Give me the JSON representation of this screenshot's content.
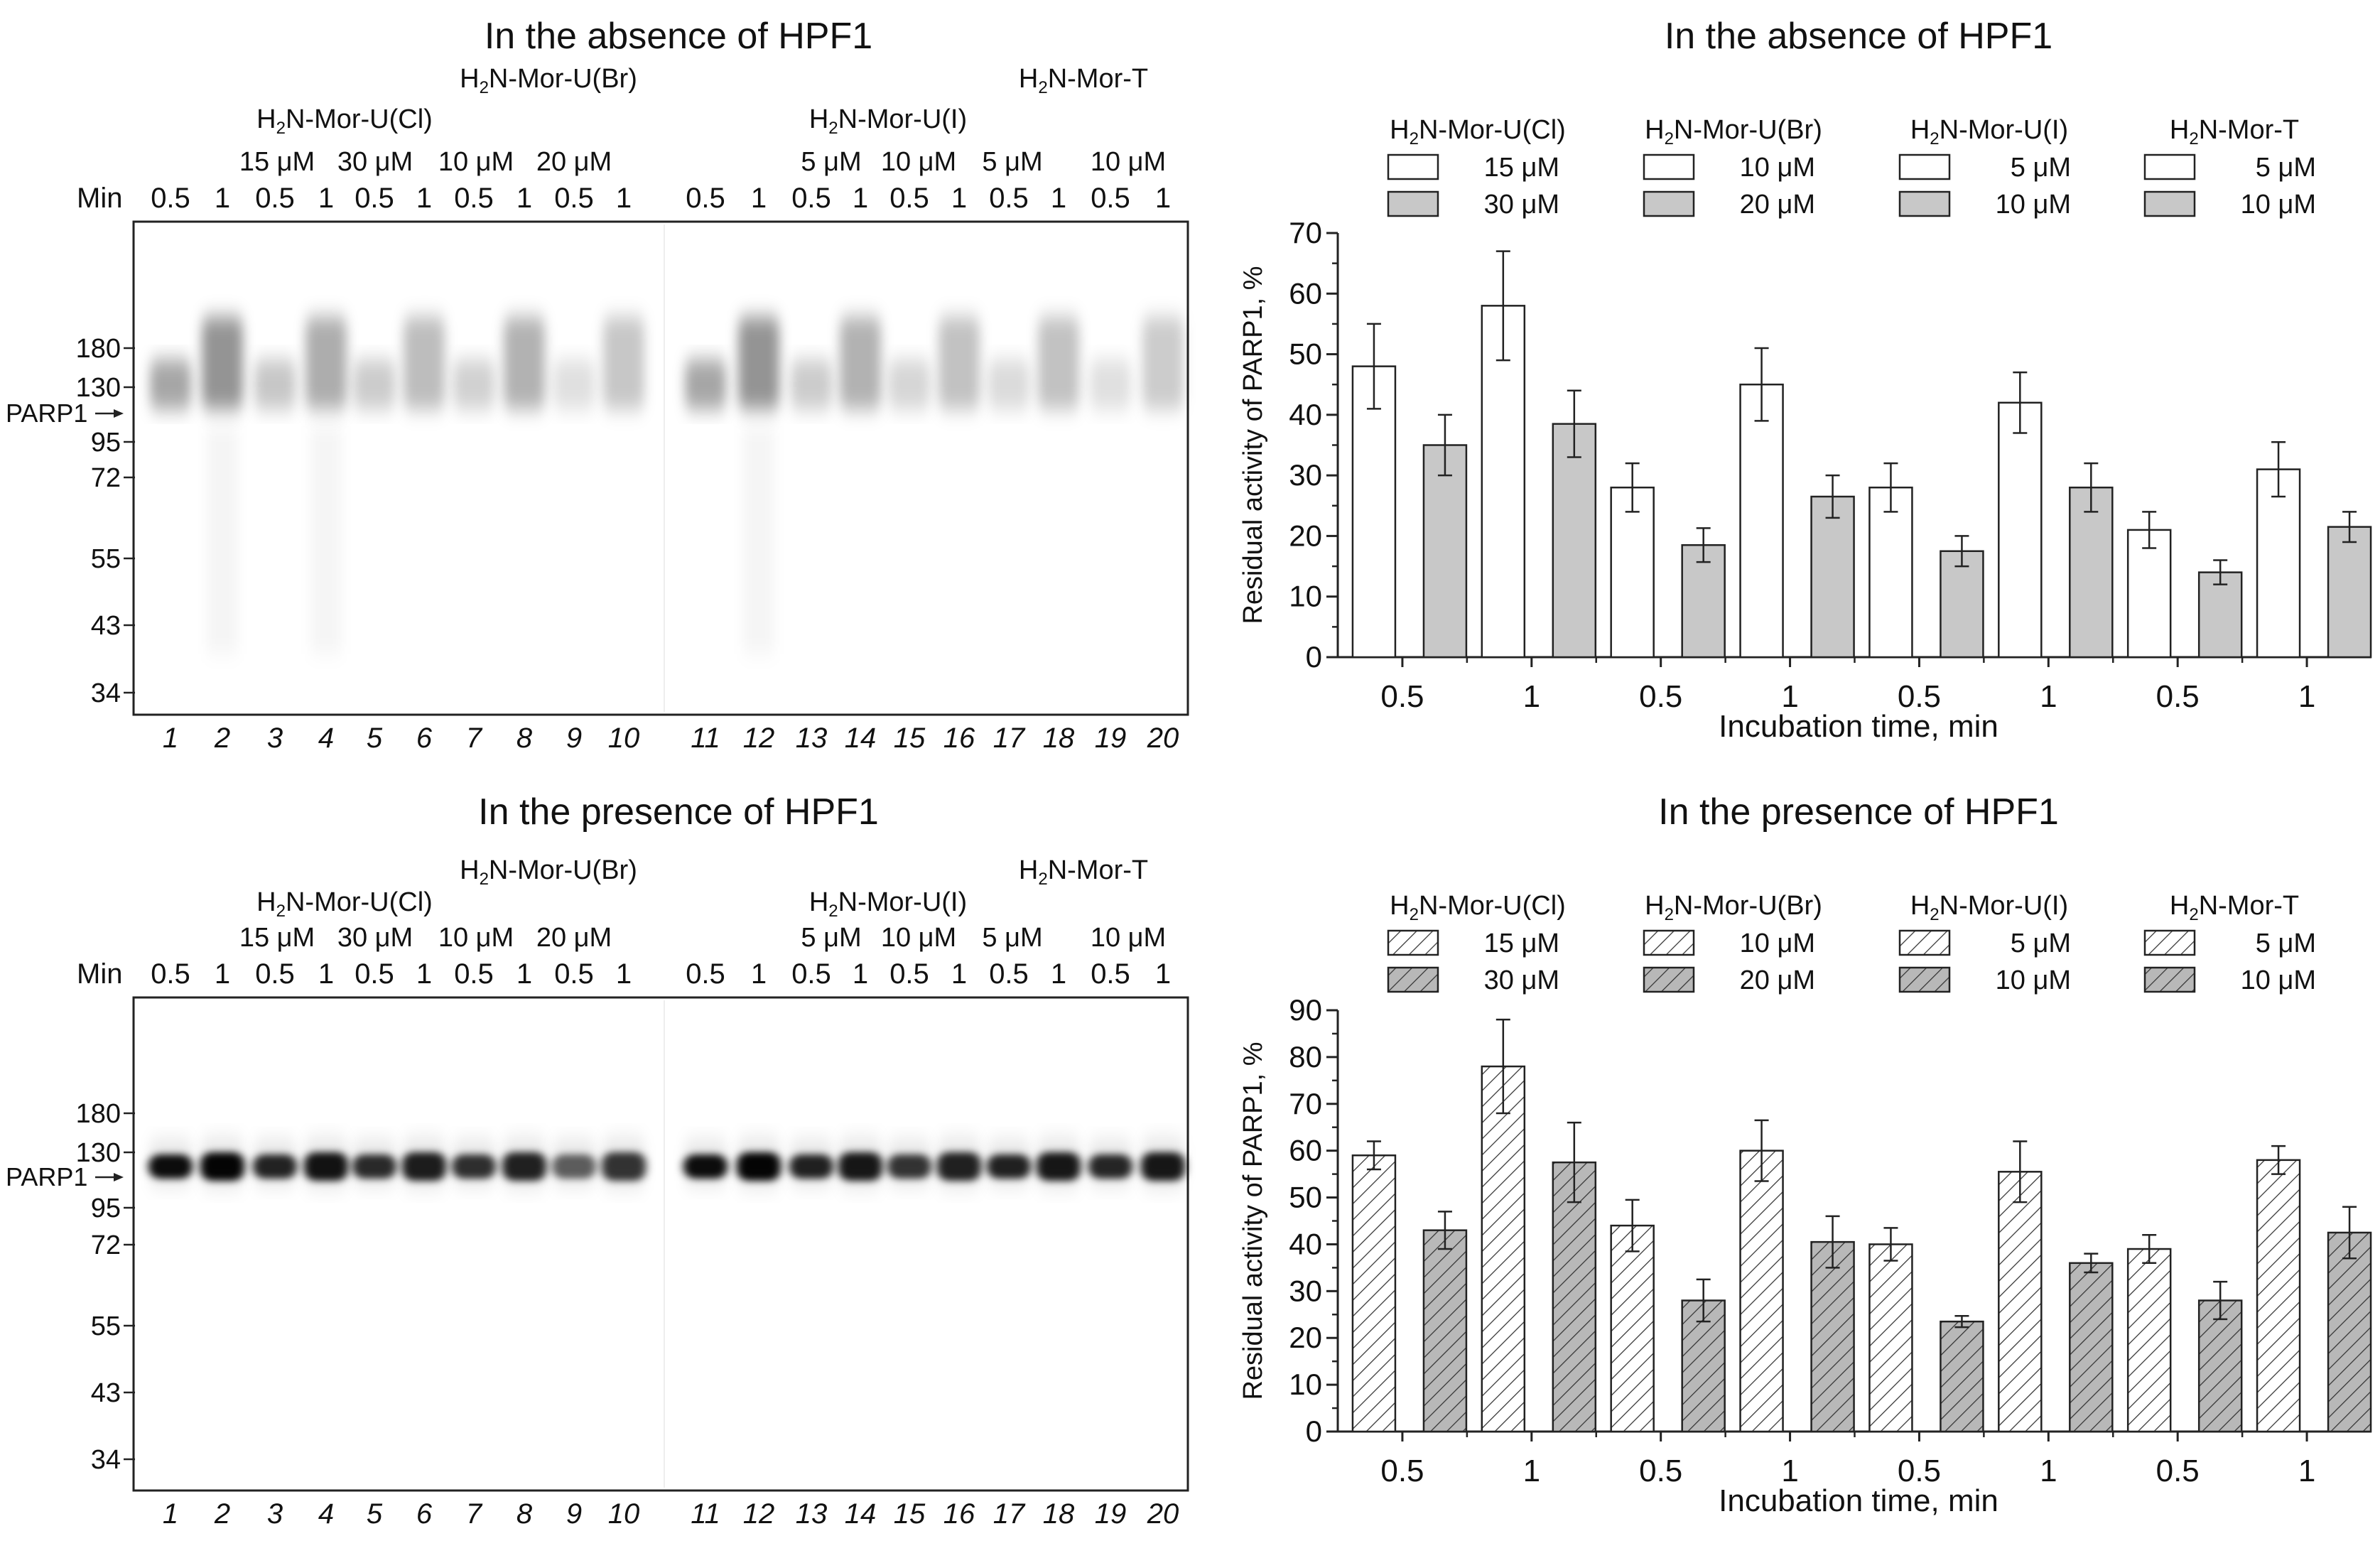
{
  "gels": [
    {
      "title": "In the absence of HPF1",
      "compound_labels": [
        "H2N-Mor-U(Cl)",
        "H2N-Mor-U(Br)",
        "H2N-Mor-U(I)",
        "H2N-Mor-T"
      ],
      "conc_labels": [
        "15 μM",
        "30 μM",
        "10 μM",
        "20 μM",
        "5 μM",
        "10 μM",
        "5 μM",
        "10 μM"
      ],
      "min_label": "Min",
      "time_labels": [
        "0.5",
        "1",
        "0.5",
        "1",
        "0.5",
        "1",
        "0.5",
        "1",
        "0.5",
        "1",
        "0.5",
        "1",
        "0.5",
        "1",
        "0.5",
        "1",
        "0.5",
        "1",
        "0.5",
        "1"
      ],
      "lane_numbers": [
        "1",
        "2",
        "3",
        "4",
        "5",
        "6",
        "7",
        "8",
        "9",
        "10",
        "11",
        "12",
        "13",
        "14",
        "15",
        "16",
        "17",
        "18",
        "19",
        "20"
      ],
      "markers": [
        "180",
        "130",
        "95",
        "72",
        "55",
        "43",
        "34"
      ],
      "parp1_label": "PARP1",
      "band_intensity": [
        0.35,
        0.42,
        0.22,
        0.32,
        0.2,
        0.26,
        0.18,
        0.3,
        0.12,
        0.22,
        0.35,
        0.42,
        0.2,
        0.3,
        0.16,
        0.24,
        0.14,
        0.24,
        0.12,
        0.2
      ]
    },
    {
      "title": "In the presence of HPF1",
      "compound_labels": [
        "H2N-Mor-U(Cl)",
        "H2N-Mor-U(Br)",
        "H2N-Mor-U(I)",
        "H2N-Mor-T"
      ],
      "conc_labels": [
        "15 μM",
        "30 μM",
        "10 μM",
        "20 μM",
        "5 μM",
        "10 μM",
        "5 μM",
        "10 μM"
      ],
      "min_label": "Min",
      "time_labels": [
        "0.5",
        "1",
        "0.5",
        "1",
        "0.5",
        "1",
        "0.5",
        "1",
        "0.5",
        "1",
        "0.5",
        "1",
        "0.5",
        "1",
        "0.5",
        "1",
        "0.5",
        "1",
        "0.5",
        "1"
      ],
      "lane_numbers": [
        "1",
        "2",
        "3",
        "4",
        "5",
        "6",
        "7",
        "8",
        "9",
        "10",
        "11",
        "12",
        "13",
        "14",
        "15",
        "16",
        "17",
        "18",
        "19",
        "20"
      ],
      "markers": [
        "180",
        "130",
        "95",
        "72",
        "55",
        "43",
        "34"
      ],
      "parp1_label": "PARP1",
      "band_intensity": [
        0.95,
        0.98,
        0.85,
        0.92,
        0.82,
        0.88,
        0.8,
        0.86,
        0.6,
        0.78,
        0.95,
        0.98,
        0.86,
        0.9,
        0.78,
        0.86,
        0.86,
        0.9,
        0.84,
        0.9
      ]
    }
  ],
  "chart_data": [
    {
      "type": "bar",
      "title": "In the absence of HPF1",
      "xlabel": "Incubation time, min",
      "ylabel": "Residual activity of PARP1, %",
      "ylim": [
        0,
        70
      ],
      "yticks": [
        0,
        10,
        20,
        30,
        40,
        50,
        60,
        70
      ],
      "categories": [
        "0.5",
        "1",
        "0.5",
        "1",
        "0.5",
        "1",
        "0.5",
        "1"
      ],
      "groups": [
        "H2N-Mor-U(Cl)",
        "H2N-Mor-U(Br)",
        "H2N-Mor-U(I)",
        "H2N-Mor-T"
      ],
      "legend": [
        {
          "compound": "H2N-Mor-U(Cl)",
          "low": "15 μM",
          "high": "30 μM"
        },
        {
          "compound": "H2N-Mor-U(Br)",
          "low": "10 μM",
          "high": "20 μM"
        },
        {
          "compound": "H2N-Mor-U(I)",
          "low": "5 μM",
          "high": "10 μM"
        },
        {
          "compound": "H2N-Mor-T",
          "low": "5 μM",
          "high": "10 μM"
        }
      ],
      "series": [
        {
          "name": "lower concentration",
          "style": "white",
          "values": [
            48,
            58,
            28,
            45,
            28,
            42,
            21,
            31
          ],
          "errors": [
            7,
            9,
            4,
            6,
            4,
            5,
            3,
            4.5
          ]
        },
        {
          "name": "higher concentration",
          "style": "gray",
          "values": [
            35,
            38.5,
            18.5,
            26.5,
            17.5,
            28,
            14,
            21.5
          ],
          "errors": [
            5,
            5.5,
            2.8,
            3.5,
            2.5,
            4,
            2,
            2.5
          ]
        }
      ],
      "colors": {
        "light": "#ffffff",
        "dark": "#c8c8c8"
      }
    },
    {
      "type": "bar",
      "title": "In the presence of HPF1",
      "xlabel": "Incubation time, min",
      "ylabel": "Residual activity of PARP1, %",
      "ylim": [
        0,
        90
      ],
      "yticks": [
        0,
        10,
        20,
        30,
        40,
        50,
        60,
        70,
        80,
        90
      ],
      "categories": [
        "0.5",
        "1",
        "0.5",
        "1",
        "0.5",
        "1",
        "0.5",
        "1"
      ],
      "groups": [
        "H2N-Mor-U(Cl)",
        "H2N-Mor-U(Br)",
        "H2N-Mor-U(I)",
        "H2N-Mor-T"
      ],
      "legend": [
        {
          "compound": "H2N-Mor-U(Cl)",
          "low": "15 μM",
          "high": "30 μM"
        },
        {
          "compound": "H2N-Mor-U(Br)",
          "low": "10 μM",
          "high": "20 μM"
        },
        {
          "compound": "H2N-Mor-U(I)",
          "low": "5 μM",
          "high": "10 μM"
        },
        {
          "compound": "H2N-Mor-T",
          "low": "5 μM",
          "high": "10 μM"
        }
      ],
      "series": [
        {
          "name": "lower concentration",
          "style": "hatched-light",
          "values": [
            59,
            78,
            44,
            60,
            40,
            55.5,
            39,
            58
          ],
          "errors": [
            3,
            10,
            5.5,
            6.5,
            3.5,
            6.5,
            3,
            3
          ]
        },
        {
          "name": "higher concentration",
          "style": "hatched-dark",
          "values": [
            43,
            57.5,
            28,
            40.5,
            23.5,
            36,
            28,
            42.5
          ],
          "errors": [
            4,
            8.5,
            4.5,
            5.5,
            1.2,
            2,
            4,
            5.5
          ]
        }
      ],
      "colors": {
        "light": "#ffffff",
        "dark": "#b8b8b8"
      }
    }
  ]
}
